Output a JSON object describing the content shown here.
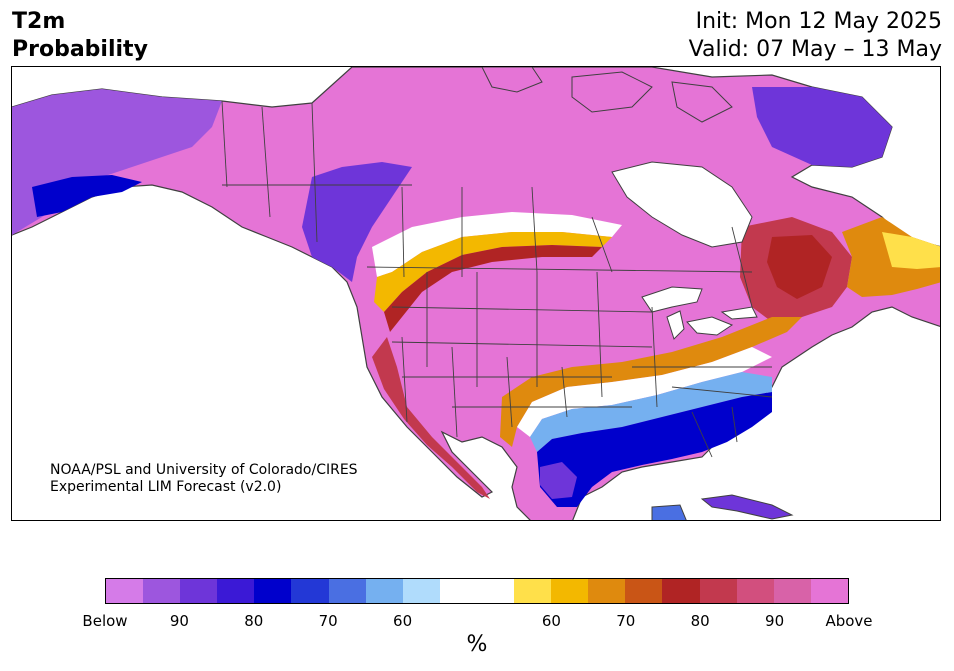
{
  "title": {
    "line1": "T2m",
    "line2": "Probability"
  },
  "init": {
    "line1": "Init: Mon 12 May 2025",
    "line2": "Valid: 07 May – 13 May"
  },
  "credit": {
    "line1": "NOAA/PSL and University of Colorado/CIRES",
    "line2": "Experimental LIM Forecast (v2.0)"
  },
  "colorbar": {
    "colors": [
      "#d57be8",
      "#9d56de",
      "#6e35d9",
      "#3b19d6",
      "#0000cc",
      "#2338d6",
      "#4a6fe2",
      "#75b0f0",
      "#b0dcfc",
      "#ffffff",
      "#ffffff",
      "#ffe04a",
      "#f3b800",
      "#df8a0e",
      "#c95516",
      "#b02424",
      "#c2394e",
      "#d24f7e",
      "#d862a8",
      "#e574d6"
    ],
    "labels": [
      "Below",
      "90",
      "80",
      "70",
      "60",
      "60",
      "70",
      "80",
      "90",
      "Above"
    ],
    "unit": "%"
  },
  "map": {
    "ocean": "#ffffff",
    "land_outline": "#404040"
  }
}
